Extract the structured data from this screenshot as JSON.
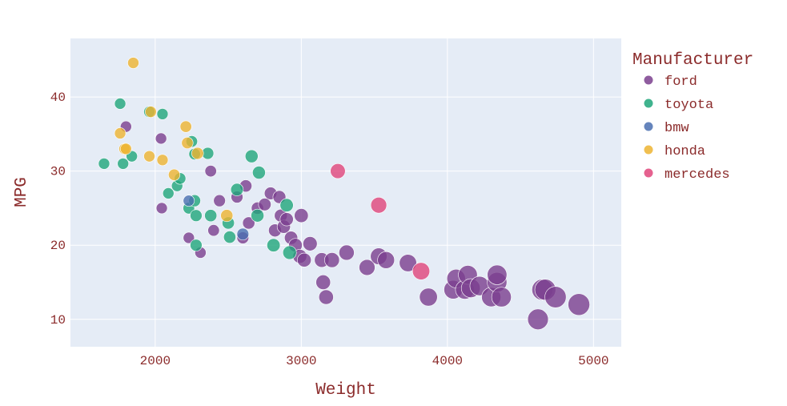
{
  "chart_data": {
    "type": "scatter",
    "xlabel": "Weight",
    "ylabel": "MPG",
    "xlim": [
      1420,
      5190
    ],
    "ylim": [
      6.3,
      47.9
    ],
    "xticks": [
      2000,
      3000,
      4000,
      5000
    ],
    "yticks": [
      10,
      20,
      30,
      40
    ],
    "grid": true,
    "plot_background": "#e5ecf6",
    "legend": {
      "title": "Manufacturer",
      "position": "right"
    },
    "series": [
      {
        "name": "ford",
        "color": "#7b3f8e",
        "points": [
          [
            2040,
            34.4,
            2000
          ],
          [
            1800,
            36,
            2000
          ],
          [
            2045,
            25,
            2000
          ],
          [
            2230,
            21,
            2000
          ],
          [
            2310,
            19,
            2000
          ],
          [
            2380,
            30,
            2100
          ],
          [
            2400,
            22,
            2100
          ],
          [
            2440,
            26,
            2200
          ],
          [
            2560,
            26.5,
            2200
          ],
          [
            2600,
            21,
            2200
          ],
          [
            2620,
            28,
            2300
          ],
          [
            2640,
            23,
            2300
          ],
          [
            2700,
            25,
            2300
          ],
          [
            2750,
            25.5,
            2400
          ],
          [
            2790,
            27,
            2400
          ],
          [
            2820,
            22,
            2500
          ],
          [
            2850,
            26.5,
            2500
          ],
          [
            2860,
            24,
            2500
          ],
          [
            2880,
            22.5,
            2600
          ],
          [
            2900,
            23.5,
            2600
          ],
          [
            2930,
            21,
            2600
          ],
          [
            2960,
            20,
            2700
          ],
          [
            2990,
            18.5,
            2800
          ],
          [
            3000,
            24,
            2800
          ],
          [
            3020,
            18,
            2800
          ],
          [
            3060,
            20.2,
            2900
          ],
          [
            3140,
            18,
            3000
          ],
          [
            3150,
            15,
            3000
          ],
          [
            3170,
            13,
            3000
          ],
          [
            3210,
            18,
            3100
          ],
          [
            3310,
            19,
            3200
          ],
          [
            3450,
            17,
            3400
          ],
          [
            3530,
            18.5,
            3600
          ],
          [
            3580,
            18,
            3700
          ],
          [
            3730,
            17.6,
            3800
          ],
          [
            3870,
            13,
            4000
          ],
          [
            4040,
            14,
            4200
          ],
          [
            4060,
            15.5,
            4200
          ],
          [
            4120,
            14,
            4300
          ],
          [
            4140,
            16,
            4300
          ],
          [
            4160,
            14.2,
            4300
          ],
          [
            4220,
            14.5,
            4400
          ],
          [
            4300,
            13,
            4400
          ],
          [
            4340,
            15,
            4500
          ],
          [
            4340,
            16,
            4500
          ],
          [
            4370,
            13,
            4500
          ],
          [
            4620,
            10,
            4800
          ],
          [
            4650,
            14,
            4900
          ],
          [
            4670,
            14,
            4900
          ],
          [
            4740,
            13,
            5000
          ],
          [
            4900,
            12,
            5100
          ]
        ]
      },
      {
        "name": "toyota",
        "color": "#1fa67a",
        "points": [
          [
            1650,
            31,
            2000
          ],
          [
            1760,
            39.1,
            2000
          ],
          [
            1780,
            31,
            2000
          ],
          [
            1840,
            32,
            2000
          ],
          [
            1960,
            38,
            2000
          ],
          [
            2050,
            37.7,
            2000
          ],
          [
            2090,
            27,
            2000
          ],
          [
            2150,
            28,
            2000
          ],
          [
            2170,
            29,
            2100
          ],
          [
            2230,
            25,
            2100
          ],
          [
            2250,
            34,
            2100
          ],
          [
            2270,
            32.3,
            2100
          ],
          [
            2270,
            26,
            2200
          ],
          [
            2280,
            24,
            2200
          ],
          [
            2280,
            20,
            2200
          ],
          [
            2360,
            32.4,
            2200
          ],
          [
            2380,
            24,
            2300
          ],
          [
            2500,
            23,
            2300
          ],
          [
            2510,
            21.1,
            2300
          ],
          [
            2560,
            27.5,
            2400
          ],
          [
            2660,
            32,
            2500
          ],
          [
            2700,
            24,
            2500
          ],
          [
            2710,
            29.8,
            2500
          ],
          [
            2810,
            20,
            2600
          ],
          [
            2900,
            25.4,
            2600
          ],
          [
            2920,
            19,
            2700
          ]
        ]
      },
      {
        "name": "bmw",
        "color": "#4a6fb0",
        "points": [
          [
            2230,
            26,
            2000
          ],
          [
            2600,
            21.5,
            2200
          ]
        ]
      },
      {
        "name": "honda",
        "color": "#edb431",
        "points": [
          [
            1850,
            44.6,
            2000
          ],
          [
            1760,
            35.1,
            2000
          ],
          [
            1790,
            33,
            2000
          ],
          [
            1800,
            33,
            2000
          ],
          [
            1960,
            32,
            2000
          ],
          [
            1970,
            38,
            2000
          ],
          [
            2050,
            31.5,
            2000
          ],
          [
            2130,
            29.5,
            2100
          ],
          [
            2210,
            36,
            2100
          ],
          [
            2220,
            33.8,
            2100
          ],
          [
            2290,
            32.4,
            2200
          ],
          [
            2490,
            24,
            2300
          ]
        ]
      },
      {
        "name": "mercedes",
        "color": "#e0457b",
        "points": [
          [
            3250,
            30,
            3100
          ],
          [
            3530,
            25.4,
            3400
          ],
          [
            3820,
            16.5,
            3800
          ]
        ]
      }
    ]
  }
}
